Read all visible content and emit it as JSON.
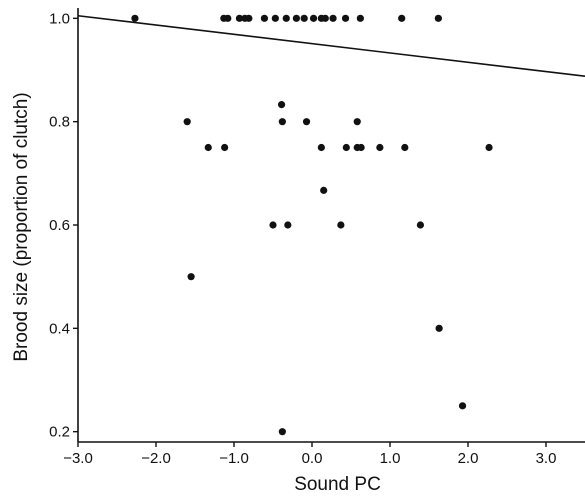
{
  "chart_data": {
    "type": "scatter",
    "title": "",
    "xlabel": "Sound PC",
    "ylabel": "Brood size (proportion of clutch)",
    "xlim": [
      -3.0,
      3.5
    ],
    "ylim": [
      0.18,
      1.02
    ],
    "x_ticks": [
      -3.0,
      -2.0,
      -1.0,
      0.0,
      1.0,
      2.0,
      3.0
    ],
    "x_tick_labels": [
      "−3.0",
      "−2.0",
      "−1.0",
      "0.0",
      "1.0",
      "2.0",
      "3.0"
    ],
    "y_ticks": [
      0.2,
      0.4,
      0.6,
      0.8,
      1.0
    ],
    "y_tick_labels": [
      "0.2",
      "0.4",
      "0.6",
      "0.8",
      "1.0"
    ],
    "grid": false,
    "legend": "none",
    "fit_line": {
      "x": [
        -3.0,
        3.5
      ],
      "y": [
        1.005,
        0.888
      ]
    },
    "points": [
      {
        "x": -2.27,
        "y": 1.0
      },
      {
        "x": -1.13,
        "y": 1.0
      },
      {
        "x": -1.08,
        "y": 1.0
      },
      {
        "x": -0.93,
        "y": 1.0
      },
      {
        "x": -0.86,
        "y": 1.0
      },
      {
        "x": -0.81,
        "y": 1.0
      },
      {
        "x": -0.61,
        "y": 1.0
      },
      {
        "x": -0.47,
        "y": 1.0
      },
      {
        "x": -0.33,
        "y": 1.0
      },
      {
        "x": -0.2,
        "y": 1.0
      },
      {
        "x": -0.1,
        "y": 1.0
      },
      {
        "x": 0.02,
        "y": 1.0
      },
      {
        "x": 0.12,
        "y": 1.0
      },
      {
        "x": 0.17,
        "y": 1.0
      },
      {
        "x": 0.27,
        "y": 1.0
      },
      {
        "x": 0.43,
        "y": 1.0
      },
      {
        "x": 0.62,
        "y": 1.0
      },
      {
        "x": 1.15,
        "y": 1.0
      },
      {
        "x": 1.62,
        "y": 1.0
      },
      {
        "x": -1.6,
        "y": 0.8
      },
      {
        "x": -0.38,
        "y": 0.8
      },
      {
        "x": -0.07,
        "y": 0.8
      },
      {
        "x": 0.58,
        "y": 0.8
      },
      {
        "x": -0.39,
        "y": 0.833
      },
      {
        "x": -1.33,
        "y": 0.75
      },
      {
        "x": -1.12,
        "y": 0.75
      },
      {
        "x": 0.12,
        "y": 0.75
      },
      {
        "x": 0.44,
        "y": 0.75
      },
      {
        "x": 0.58,
        "y": 0.75
      },
      {
        "x": 0.63,
        "y": 0.75
      },
      {
        "x": 0.87,
        "y": 0.75
      },
      {
        "x": 1.19,
        "y": 0.75
      },
      {
        "x": 2.27,
        "y": 0.75
      },
      {
        "x": 0.15,
        "y": 0.667
      },
      {
        "x": -0.5,
        "y": 0.6
      },
      {
        "x": -0.31,
        "y": 0.6
      },
      {
        "x": 0.37,
        "y": 0.6
      },
      {
        "x": 1.39,
        "y": 0.6
      },
      {
        "x": -1.55,
        "y": 0.5
      },
      {
        "x": 1.63,
        "y": 0.4
      },
      {
        "x": 1.93,
        "y": 0.25
      },
      {
        "x": -0.38,
        "y": 0.2
      }
    ]
  }
}
